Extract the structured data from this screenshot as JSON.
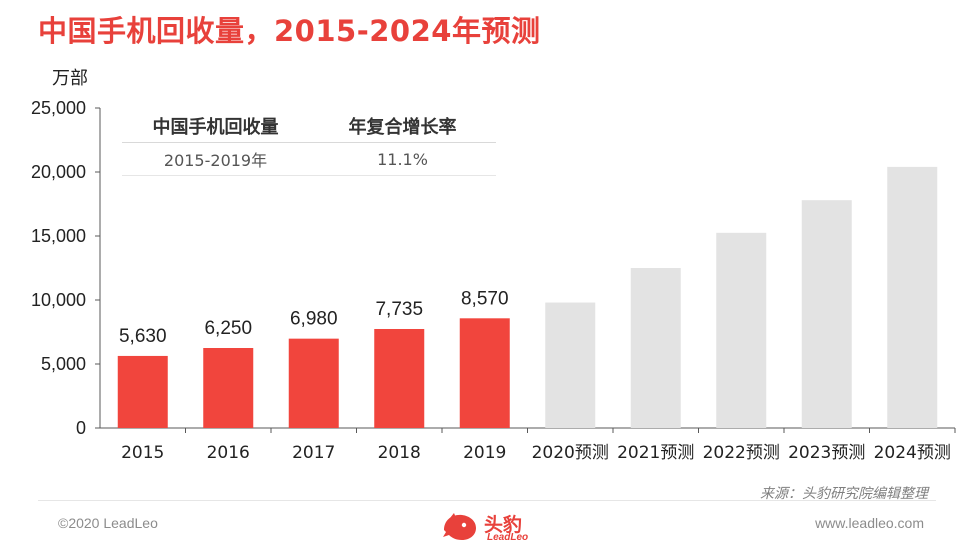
{
  "title": "中国手机回收量，2015-2024年预测",
  "chart_data": {
    "type": "bar",
    "ylabel": "万部",
    "ylim": [
      0,
      25000
    ],
    "yticks": [
      "0",
      "5,000",
      "10,000",
      "15,000",
      "20,000",
      "25,000"
    ],
    "yticks_values": [
      0,
      5000,
      10000,
      15000,
      20000,
      25000
    ],
    "categories": [
      "2015",
      "2016",
      "2017",
      "2018",
      "2019",
      "2020预测",
      "2021预测",
      "2022预测",
      "2023预测",
      "2024预测"
    ],
    "values": [
      5630,
      6250,
      6980,
      7735,
      8570,
      9800,
      12500,
      15250,
      17800,
      20400
    ],
    "data_labels": [
      "5,630",
      "6,250",
      "6,980",
      "7,735",
      "8,570",
      "",
      "",
      "",
      "",
      ""
    ],
    "forecast": [
      false,
      false,
      false,
      false,
      false,
      true,
      true,
      true,
      true,
      true
    ],
    "colors": {
      "actual": "#f1453d",
      "forecast": "#e3e3e3"
    },
    "grid": false
  },
  "table": {
    "headers": [
      "中国手机回收量",
      "年复合增长率"
    ],
    "rows": [
      [
        "2015-2019年",
        "11.1%"
      ]
    ]
  },
  "source": "来源：头豹研究院编辑整理",
  "footer": {
    "copyright": "©2020 LeadLeo",
    "website": "www.leadleo.com",
    "logo_text": "头豹",
    "logo_sub": "LeadLeo"
  },
  "accent": "#e8413b"
}
